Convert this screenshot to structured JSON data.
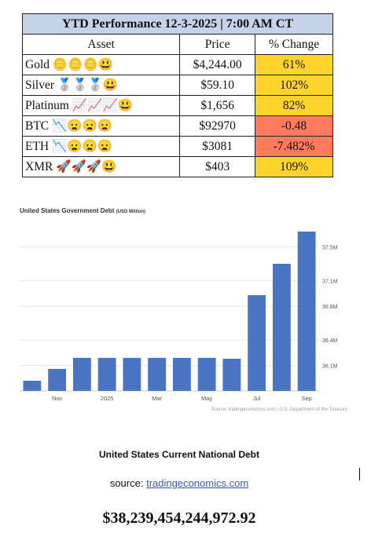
{
  "table": {
    "title": "YTD Performance 12-3-2025 | 7:00 AM CT",
    "header": [
      "Asset",
      "Price",
      "% Change"
    ],
    "rows": [
      [
        "Gold 🪙🪙🪙😃",
        "$4,244.00",
        "61%"
      ],
      [
        "Silver 🥈🥈🥈😃",
        "$59.10",
        "102%"
      ],
      [
        "Platinum 📈📈📈😃",
        "$1,656",
        "82%"
      ],
      [
        "BTC 📉😦😦😦",
        "$92970",
        "-0.48"
      ],
      [
        "ETH 📉😦😦😦",
        "$3081",
        "-7.482%"
      ],
      [
        "XMR 🚀🚀🚀😃",
        "$403",
        "109%"
      ]
    ]
  },
  "chart_data": {
    "type": "bar",
    "title": "United States Government Debt",
    "subtitle": "(USD Million)",
    "source": "Source: tradingeconomics.com | U.S. Department of the Treasury",
    "categories": [
      null,
      "Nov",
      null,
      "2025",
      null,
      "Mar",
      null,
      "May",
      null,
      "Jul",
      null,
      "Sep"
    ],
    "values": [
      35920000,
      36060000,
      36190000,
      36190000,
      36190000,
      36190000,
      36190000,
      36190000,
      36180000,
      36930000,
      37300000,
      37680000
    ],
    "color": "#4a74c4",
    "ylim": [
      35800000,
      37800000
    ],
    "yticks": [
      {
        "value": 36100000,
        "label": "36.1M"
      },
      {
        "value": 36400000,
        "label": "36.4M"
      },
      {
        "value": 36800000,
        "label": "36.8M"
      },
      {
        "value": 37100000,
        "label": "37.1M"
      },
      {
        "value": 37500000,
        "label": "37.5M"
      }
    ],
    "grid": true
  },
  "national_debt": {
    "title": "United States Current National Debt",
    "source_label": "source:",
    "source_link": "tradingeconomics.com",
    "value": "$38,239,454,244,972.92"
  }
}
